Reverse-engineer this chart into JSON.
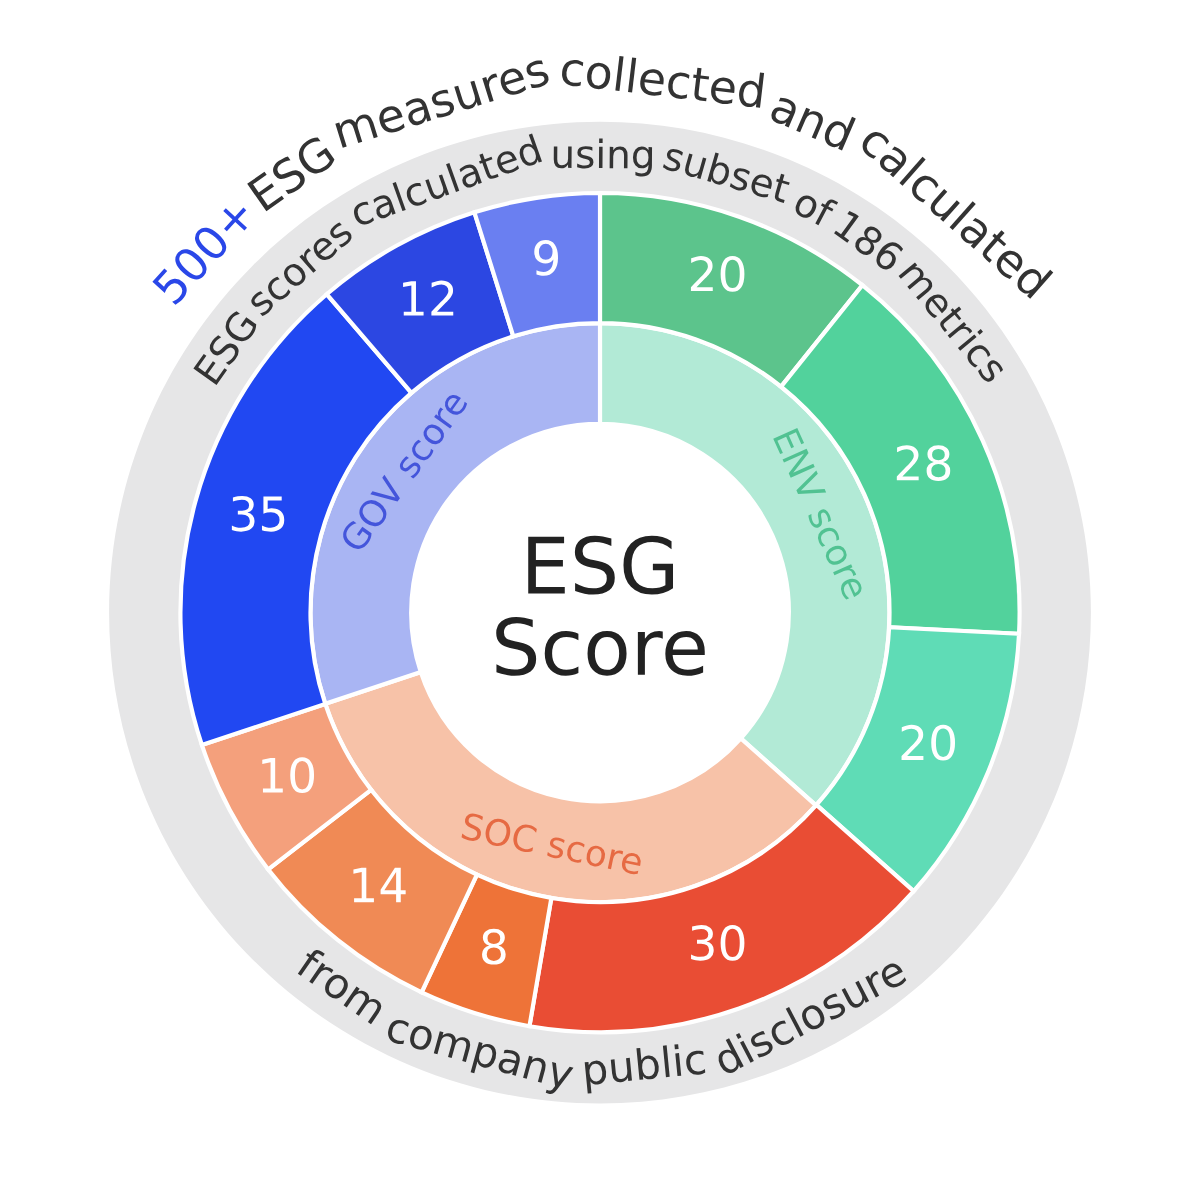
{
  "chart_data": {
    "type": "donut",
    "title": "ESG\nScore",
    "annotations": [
      "500+ ESG measures collected and calculated",
      "ESG scores calculated using subset of 186 metrics",
      "from company public disclosure"
    ],
    "series": [
      {
        "values": [
          36.6,
          33.3,
          30.1
        ],
        "value_labels": [
          "ENV score",
          "SOC score",
          "GOV score"
        ],
        "colors": [
          "#b2ead6",
          "#f7c2a8",
          "#a9b5f3"
        ]
      },
      {
        "values": [
          20,
          28,
          20,
          30,
          8,
          14,
          10,
          35,
          12,
          9
        ],
        "value_labels": [
          "20",
          "28",
          "20",
          "30",
          "8",
          "14",
          "10",
          "35",
          "12",
          "9"
        ],
        "colors": [
          "#5cc48c",
          "#52d29c",
          "#5fdcb6",
          "#e94d34",
          "#ee7338",
          "#f08a55",
          "#f4a07c",
          "#2148f2",
          "#2c47e2",
          "#6a7ff1"
        ]
      }
    ]
  }
}
